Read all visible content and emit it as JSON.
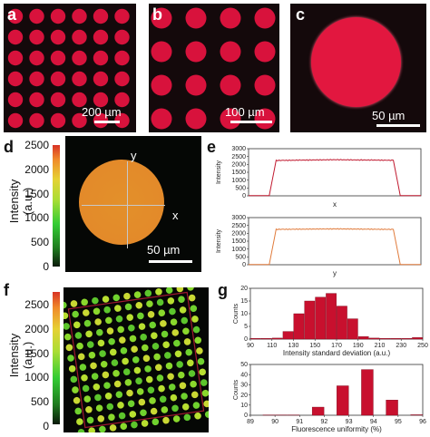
{
  "panels": {
    "a": {
      "letter": "a",
      "scale": "200 µm",
      "rows": 6,
      "cols": 6
    },
    "b": {
      "letter": "b",
      "scale": "100 µm",
      "rows": 4,
      "cols": 4
    },
    "c": {
      "letter": "c",
      "scale": "50 µm"
    },
    "d": {
      "letter": "d",
      "scale": "50 µm",
      "axis_x": "x",
      "axis_y": "y",
      "colorbar_label": "Intensity (a.u.)",
      "colorbar_ticks": [
        "2500",
        "2000",
        "1500",
        "1000",
        "500",
        "0"
      ]
    },
    "e": {
      "letter": "e"
    },
    "f": {
      "letter": "f",
      "colorbar_label": "Intensity (a.u.)",
      "colorbar_ticks": [
        "2500",
        "2000",
        "1500",
        "1000",
        "500",
        "0"
      ],
      "rows": 13,
      "cols": 13
    },
    "g": {
      "letter": "g"
    }
  },
  "colors": {
    "dot_red": "#d8123c",
    "dark_bg": "#14090b",
    "plot_red": "#c0182e",
    "plot_orange": "#e07a3a",
    "bar_red": "#c8102e"
  },
  "chart_data": [
    {
      "type": "line",
      "xlabel": "x",
      "ylabel": "Intensity",
      "ylim": [
        0,
        3000
      ],
      "yticks": [
        "0",
        "500",
        "1000",
        "1500",
        "2000",
        "2500",
        "3000"
      ],
      "series": [
        {
          "x": [
            0,
            0.12,
            0.16,
            0.5,
            0.84,
            0.88,
            1.0
          ],
          "y": [
            20,
            20,
            2250,
            2300,
            2260,
            20,
            20
          ]
        }
      ]
    },
    {
      "type": "line",
      "xlabel": "y",
      "ylabel": "Intensity",
      "ylim": [
        0,
        3000
      ],
      "yticks": [
        "0",
        "500",
        "1000",
        "1500",
        "2000",
        "2500",
        "3000"
      ],
      "series": [
        {
          "x": [
            0,
            0.12,
            0.16,
            0.5,
            0.84,
            0.88,
            1.0
          ],
          "y": [
            20,
            20,
            2250,
            2280,
            2250,
            20,
            20
          ]
        }
      ]
    },
    {
      "type": "bar",
      "xlabel": "Intensity standard deviation (a.u.)",
      "ylabel": "Counts",
      "ylim": [
        0,
        20
      ],
      "xlim": [
        90,
        250
      ],
      "xticks": [
        "90",
        "110",
        "130",
        "150",
        "170",
        "190",
        "210",
        "230",
        "250"
      ],
      "yticks": [
        "0",
        "5",
        "10",
        "15",
        "20"
      ],
      "bin_width": 10,
      "bins": [
        [
          90,
          0.3
        ],
        [
          100,
          0.3
        ],
        [
          110,
          0.4
        ],
        [
          120,
          3
        ],
        [
          130,
          10
        ],
        [
          140,
          15
        ],
        [
          150,
          16.5
        ],
        [
          160,
          18
        ],
        [
          170,
          13
        ],
        [
          180,
          8
        ],
        [
          190,
          1
        ],
        [
          200,
          0.4
        ],
        [
          210,
          0.3
        ],
        [
          220,
          0.3
        ],
        [
          230,
          0.3
        ],
        [
          240,
          0.6
        ]
      ]
    },
    {
      "type": "bar",
      "xlabel": "Fluorescence uniformity (%)",
      "ylabel": "Counts",
      "ylim": [
        0,
        50
      ],
      "xlim": [
        89,
        96
      ],
      "xticks": [
        "89",
        "90",
        "91",
        "92",
        "93",
        "94",
        "95",
        "96"
      ],
      "yticks": [
        "0",
        "10",
        "20",
        "30",
        "40",
        "50"
      ],
      "bin_width": 0.5,
      "bins": [
        [
          89.5,
          0.3
        ],
        [
          90,
          0.3
        ],
        [
          90.5,
          0.3
        ],
        [
          91.5,
          8
        ],
        [
          92.5,
          29
        ],
        [
          93.5,
          45
        ],
        [
          94.5,
          15
        ],
        [
          95.5,
          0.5
        ]
      ]
    }
  ]
}
